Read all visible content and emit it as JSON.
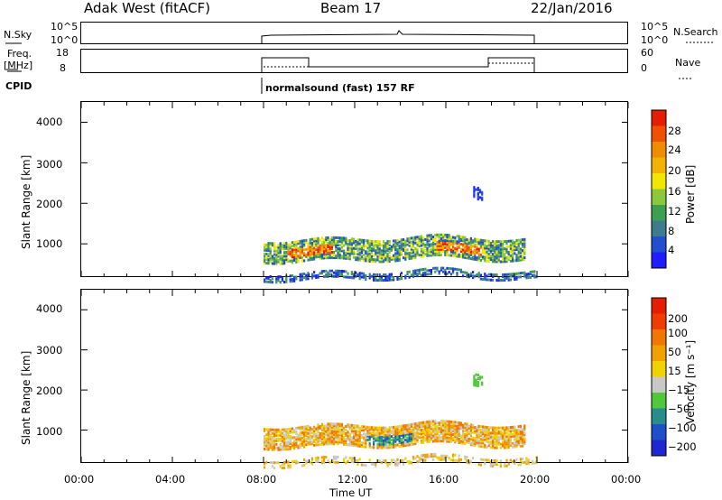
{
  "header": {
    "station": "Adak West (fitACF)",
    "beam": "Beam 17",
    "date": "22/Jan/2016"
  },
  "top_panels": {
    "nsky_label": "N.Sky",
    "nsky_ticks": [
      "10^5",
      "10^0"
    ],
    "nsearch_label": "N.Search",
    "freq_label_1": "Freq.",
    "freq_label_2": "[MHz]",
    "freq_ticks": [
      "18",
      "8"
    ],
    "nave_ticks": [
      "60",
      "0"
    ],
    "nave_label": "Nave",
    "cpid_label": "CPID",
    "cpid_text": "normalsound (fast) 157 RF"
  },
  "axes": {
    "ylabel": "Slant Range [km]",
    "yticks": [
      "4000",
      "3000",
      "2000",
      "1000"
    ],
    "xticks": [
      "00:00",
      "04:00",
      "08:00",
      "12:00",
      "16:00",
      "20:00",
      "00:00"
    ],
    "xlabel": "Time UT"
  },
  "colorbars": {
    "power": {
      "label": "Power [dB]",
      "ticks": [
        "28",
        "24",
        "20",
        "16",
        "12",
        "8",
        "4"
      ],
      "colors": [
        "#1e1eff",
        "#2050d0",
        "#3c7c8c",
        "#3ca050",
        "#8cc83c",
        "#f0e600",
        "#f0b400",
        "#f08c00",
        "#f05000",
        "#e61e00"
      ]
    },
    "velocity": {
      "label": "Velocity [m s⁻¹]",
      "ticks": [
        "200",
        "100",
        "50",
        "15",
        "−15",
        "−50",
        "−100",
        "−200"
      ],
      "colors": [
        "#1e28d2",
        "#1e50c8",
        "#288c8c",
        "#50c83c",
        "#c8c8c8",
        "#f0d200",
        "#f0a000",
        "#f07800",
        "#f03c00",
        "#e61e00"
      ]
    }
  },
  "chart_data": [
    {
      "type": "heatmap",
      "title": "Power [dB]",
      "xlabel": "Time UT",
      "ylabel": "Slant Range [km]",
      "xlim_hours": [
        0,
        24
      ],
      "ylim": [
        180,
        4500
      ],
      "data_start_hour": 8,
      "data_end_hour": 20,
      "features": [
        {
          "region": "main echo band",
          "time_hours": [
            8.0,
            19.5
          ],
          "range_km": [
            650,
            1150
          ],
          "power_db": [
            4,
            28
          ]
        },
        {
          "region": "near range band",
          "time_hours": [
            8.0,
            20.0
          ],
          "range_km": [
            180,
            350
          ],
          "power_db": [
            4,
            24
          ]
        },
        {
          "region": "far patch",
          "time_hours": [
            17.2,
            17.6
          ],
          "range_km": [
            2100,
            2450
          ],
          "power_db": [
            4,
            10
          ]
        }
      ]
    },
    {
      "type": "heatmap",
      "title": "Velocity",
      "xlabel": "Time UT",
      "ylabel": "Slant Range [km]",
      "xlim_hours": [
        0,
        24
      ],
      "ylim": [
        180,
        4500
      ],
      "features": [
        {
          "region": "main echo band",
          "time_hours": [
            8.0,
            19.5
          ],
          "range_km": [
            650,
            1150
          ],
          "velocity_ms": [
            -100,
            100
          ]
        },
        {
          "region": "near range band",
          "time_hours": [
            8.0,
            20.0
          ],
          "range_km": [
            180,
            350
          ],
          "velocity_ms": [
            -50,
            15
          ]
        }
      ]
    }
  ]
}
